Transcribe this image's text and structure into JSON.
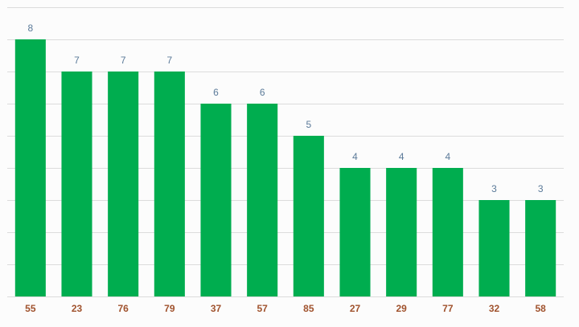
{
  "chart_data": {
    "type": "bar",
    "categories": [
      "55",
      "23",
      "76",
      "79",
      "37",
      "57",
      "85",
      "27",
      "29",
      "77",
      "32",
      "58"
    ],
    "values": [
      8,
      7,
      7,
      7,
      6,
      6,
      5,
      4,
      4,
      4,
      3,
      3
    ],
    "color": "#00ad4f",
    "ylim": [
      0,
      9
    ],
    "yticks": [
      0,
      1,
      2,
      3,
      4,
      5,
      6,
      7,
      8,
      9
    ],
    "grid": true
  }
}
